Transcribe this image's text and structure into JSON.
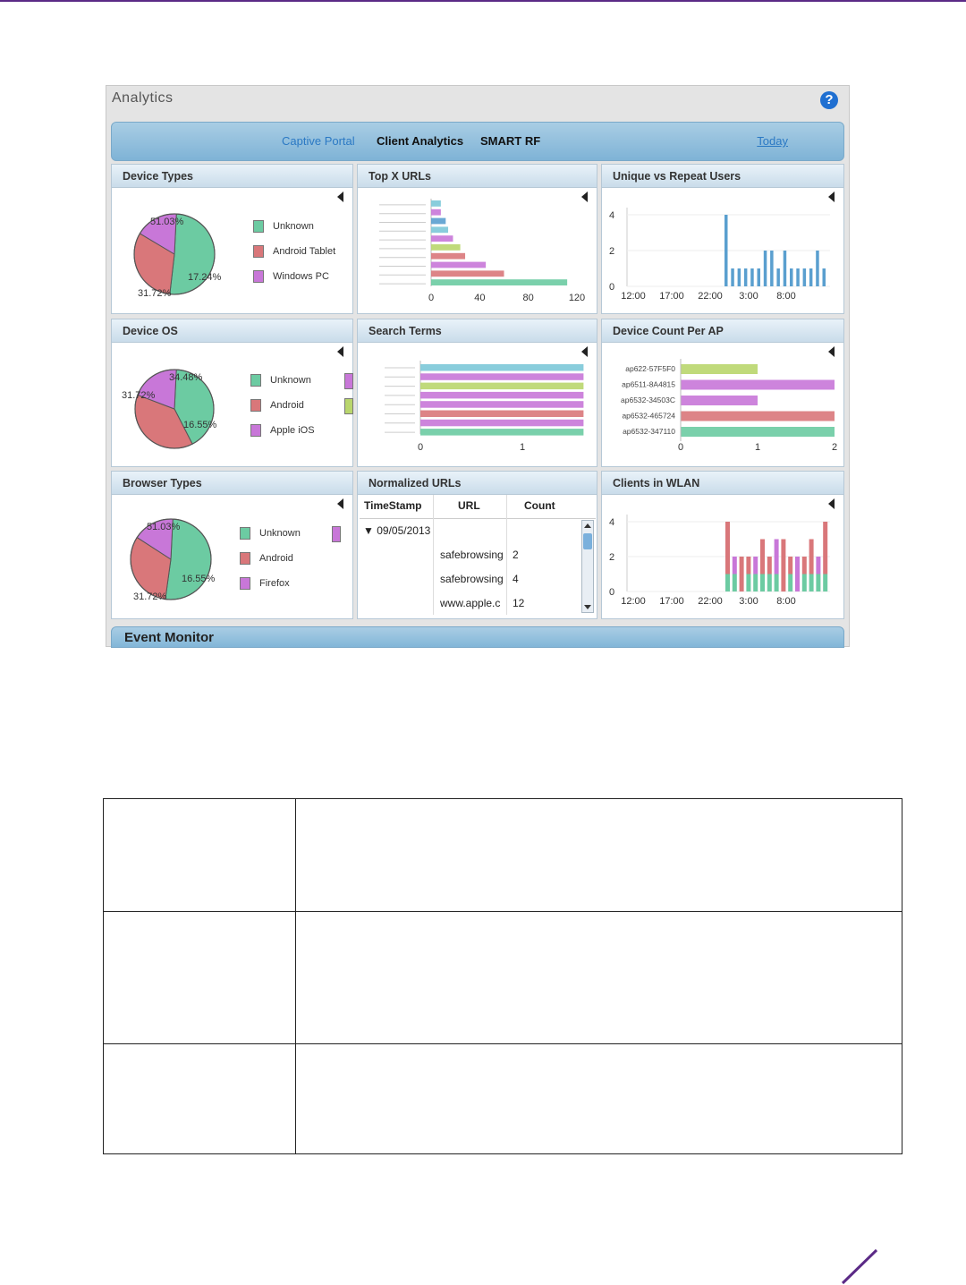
{
  "window": {
    "title": "Analytics"
  },
  "tabs": {
    "captive_portal": "Captive Portal",
    "client_analytics": "Client Analytics",
    "smart_rf": "SMART RF",
    "today": "Today"
  },
  "colors": {
    "teal": "#6ccba2",
    "red": "#d9777a",
    "purple": "#c877d8",
    "lime": "#b9d66d",
    "cyan": "#7cc8d8",
    "blue": "#5a9fcf"
  },
  "panels": {
    "device_types": {
      "title": "Device Types",
      "legend": [
        "Unknown",
        "Android Tablet",
        "Windows PC"
      ]
    },
    "top_urls": {
      "title": "Top X URLs"
    },
    "unique_repeat": {
      "title": "Unique vs Repeat Users"
    },
    "device_os": {
      "title": "Device OS",
      "legend": [
        "Unknown",
        "Android",
        "Apple iOS"
      ]
    },
    "search_terms": {
      "title": "Search Terms"
    },
    "device_count_ap": {
      "title": "Device Count Per AP"
    },
    "browser_types": {
      "title": "Browser Types",
      "legend": [
        "Unknown",
        "Android",
        "Firefox"
      ]
    },
    "normalized_urls": {
      "title": "Normalized URLs",
      "columns": [
        "TimeStamp",
        "URL",
        "Count"
      ],
      "group": "09/05/2013",
      "rows": [
        {
          "url": "safebrowsing",
          "count": "2"
        },
        {
          "url": "safebrowsing",
          "count": "4"
        },
        {
          "url": "www.apple.c",
          "count": "12"
        }
      ]
    },
    "clients_wlan": {
      "title": "Clients in WLAN"
    },
    "event_monitor": {
      "title": "Event Monitor"
    }
  },
  "chart_data": [
    {
      "type": "pie",
      "title": "Device Types",
      "labels": [
        "Unknown",
        "Android Tablet",
        "Windows PC"
      ],
      "values": [
        51.03,
        31.72,
        17.24
      ],
      "data_labels": [
        "51.03%",
        "31.72%",
        "17.24%"
      ]
    },
    {
      "type": "bar",
      "title": "Top X URLs",
      "orientation": "horizontal",
      "values": [
        112,
        60,
        45,
        28,
        24,
        18,
        14,
        12,
        8,
        8
      ],
      "xlim": [
        0,
        120
      ],
      "xticks": [
        0,
        40,
        80,
        120
      ]
    },
    {
      "type": "bar",
      "title": "Unique vs Repeat Users",
      "xticks": [
        "12:00",
        "17:00",
        "22:00",
        "3:00",
        "8:00"
      ],
      "yticks": [
        0,
        2,
        4
      ],
      "ylim": [
        0,
        4
      ],
      "values": [
        4,
        1,
        1,
        1,
        1,
        1,
        2,
        2,
        1,
        2,
        1,
        1,
        1,
        1,
        2,
        1
      ]
    },
    {
      "type": "pie",
      "title": "Device OS",
      "labels": [
        "Unknown",
        "Android",
        "Apple iOS"
      ],
      "values": [
        34.48,
        31.72,
        16.55
      ],
      "data_labels": [
        "34.48%",
        "31.72%",
        "16.55%"
      ]
    },
    {
      "type": "bar",
      "title": "Search Terms",
      "orientation": "horizontal",
      "values": [
        1.6,
        1.6,
        1.6,
        1.6,
        1.6,
        1.6,
        1.6,
        1.6
      ],
      "xticks": [
        0,
        1
      ]
    },
    {
      "type": "bar",
      "title": "Device Count Per AP",
      "orientation": "horizontal",
      "categories": [
        "ap622-57F5F0",
        "ap6511-8A4815",
        "ap6532-34503C",
        "ap6532-465724",
        "ap6532-347110"
      ],
      "values": [
        1,
        2,
        1,
        2,
        2
      ],
      "xticks": [
        0,
        1,
        2
      ],
      "xlim": [
        0,
        2
      ]
    },
    {
      "type": "pie",
      "title": "Browser Types",
      "labels": [
        "Unknown",
        "Android",
        "Firefox"
      ],
      "values": [
        51.03,
        31.72,
        16.55
      ],
      "data_labels": [
        "51.03%",
        "31.72%",
        "16.55%"
      ]
    },
    {
      "type": "bar",
      "title": "Clients in WLAN",
      "stacked": true,
      "xticks": [
        "12:00",
        "17:00",
        "22:00",
        "3:00",
        "8:00"
      ],
      "yticks": [
        0,
        2,
        4
      ],
      "ylim": [
        0,
        4
      ],
      "series": [
        {
          "values": [
            1,
            1,
            0,
            1,
            1,
            1,
            1,
            1,
            0,
            1,
            0,
            1,
            1,
            1,
            1
          ]
        },
        {
          "values": [
            3,
            1,
            2,
            1,
            1,
            2,
            1,
            2,
            3,
            1,
            2,
            1,
            2,
            1,
            3
          ]
        }
      ]
    }
  ]
}
